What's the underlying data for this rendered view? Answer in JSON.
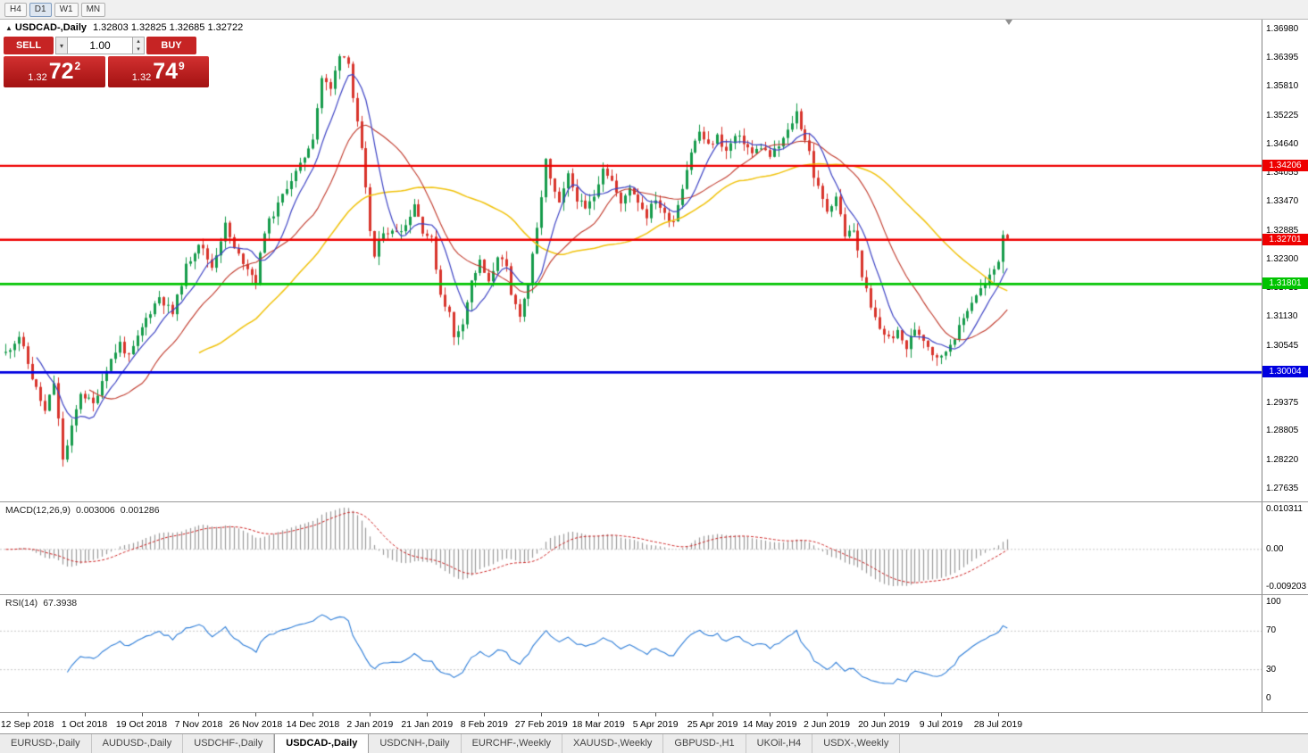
{
  "toolbar": {
    "timeframes": [
      {
        "label": "H4",
        "active": false
      },
      {
        "label": "D1",
        "active": true
      },
      {
        "label": "W1",
        "active": false
      },
      {
        "label": "MN",
        "active": false
      }
    ]
  },
  "chart_header": {
    "collapse_icon": "▲",
    "symbol": "USDCAD-,Daily",
    "ohlc": "1.32803 1.32825 1.32685 1.32722"
  },
  "trade_panel": {
    "sell_label": "SELL",
    "buy_label": "BUY",
    "volume": "1.00",
    "sell_price": {
      "prefix": "1.32",
      "big": "72",
      "sup": "2"
    },
    "buy_price": {
      "prefix": "1.32",
      "big": "74",
      "sup": "9"
    }
  },
  "price_axis": {
    "labels": [
      "1.36980",
      "1.36395",
      "1.35810",
      "1.35225",
      "1.34640",
      "1.34055",
      "1.33470",
      "1.32885",
      "1.32300",
      "1.31715",
      "1.31130",
      "1.30545",
      "1.29960",
      "1.29375",
      "1.28805",
      "1.28220",
      "1.27635"
    ]
  },
  "hlines": [
    {
      "label": "1.34206",
      "value": 1.34206,
      "color": "#ee0000",
      "width": 2.4
    },
    {
      "label": "1.32701",
      "value": 1.32701,
      "color": "#ee0000",
      "width": 2.4
    },
    {
      "label": "1.31801",
      "value": 1.31801,
      "color": "#00c400",
      "width": 2.6
    },
    {
      "label": "1.30004",
      "value": 1.30004,
      "color": "#0000e0",
      "width": 2.6
    }
  ],
  "macd_panel": {
    "name": "MACD(12,26,9)",
    "value_main": "0.003006",
    "value_signal": "0.001286",
    "axis_labels": [
      "0.010311",
      "0.00",
      "-0.009203"
    ]
  },
  "rsi_panel": {
    "name": "RSI(14)",
    "value": "67.3938",
    "axis_labels": [
      "100",
      "70",
      "30",
      "0"
    ],
    "levels": [
      70,
      30
    ]
  },
  "date_axis": {
    "labels": [
      "12 Sep 2018",
      "1 Oct 2018",
      "19 Oct 2018",
      "7 Nov 2018",
      "26 Nov 2018",
      "14 Dec 2018",
      "2 Jan 2019",
      "21 Jan 2019",
      "8 Feb 2019",
      "27 Feb 2019",
      "18 Mar 2019",
      "5 Apr 2019",
      "25 Apr 2019",
      "14 May 2019",
      "2 Jun 2019",
      "20 Jun 2019",
      "9 Jul 2019",
      "28 Jul 2019"
    ]
  },
  "tabs": [
    {
      "label": "EURUSD-,Daily",
      "active": false
    },
    {
      "label": "AUDUSD-,Daily",
      "active": false
    },
    {
      "label": "USDCHF-,Daily",
      "active": false
    },
    {
      "label": "USDCAD-,Daily",
      "active": true
    },
    {
      "label": "USDCNH-,Daily",
      "active": false
    },
    {
      "label": "EURCHF-,Weekly",
      "active": false
    },
    {
      "label": "XAUUSD-,Weekly",
      "active": false
    },
    {
      "label": "GBPUSD-,H1",
      "active": false
    },
    {
      "label": "UKOil-,H4",
      "active": false
    },
    {
      "label": "USDX-,Weekly",
      "active": false
    }
  ],
  "chart_data": {
    "type": "candlestick",
    "symbol": "USDCAD",
    "timeframe": "Daily",
    "x_range": [
      "12 Sep 2018",
      "28 Jul 2019"
    ],
    "y_axis_ticks": [
      1.3698,
      1.36395,
      1.3581,
      1.35225,
      1.3464,
      1.34055,
      1.3347,
      1.32885,
      1.323,
      1.31715,
      1.3113,
      1.30545,
      1.2996,
      1.29375,
      1.28805,
      1.2822,
      1.27635
    ],
    "horizontal_lines": [
      1.34206,
      1.32701,
      1.31801,
      1.30004
    ],
    "last_bar": {
      "open": 1.32803,
      "high": 1.32825,
      "low": 1.32685,
      "close": 1.32722
    },
    "bid": 1.32722,
    "ask": 1.32749,
    "indicators": [
      {
        "name": "MACD",
        "params": [
          12,
          26,
          9
        ],
        "current": [
          0.003006,
          0.001286
        ],
        "scale": [
          0.010311,
          -0.009203
        ]
      },
      {
        "name": "RSI",
        "params": [
          14
        ],
        "current": 67.3938,
        "scale": [
          0,
          100
        ],
        "levels": [
          30,
          70
        ]
      }
    ],
    "style": {
      "up_color": "#169b4b",
      "down_color": "#d8342c",
      "ma_colors": [
        "#3d43c4",
        "#c0392b",
        "#f0c20c"
      ],
      "ma_periods": [
        8,
        20,
        45
      ],
      "macd_hist_color": "#9a9a9a",
      "macd_signal_color": "#cc2020",
      "rsi_color": "#2f7ed8"
    },
    "bar_count": 229,
    "close_anchors": [
      [
        0,
        1.304
      ],
      [
        3,
        1.3075
      ],
      [
        6,
        1.299
      ],
      [
        9,
        1.292
      ],
      [
        11,
        1.298
      ],
      [
        13,
        1.2825
      ],
      [
        14,
        1.285
      ],
      [
        17,
        1.296
      ],
      [
        20,
        1.2935
      ],
      [
        23,
        1.301
      ],
      [
        26,
        1.306
      ],
      [
        28,
        1.303
      ],
      [
        32,
        1.311
      ],
      [
        35,
        1.3155
      ],
      [
        38,
        1.312
      ],
      [
        41,
        1.3215
      ],
      [
        44,
        1.3265
      ],
      [
        47,
        1.3215
      ],
      [
        50,
        1.33
      ],
      [
        52,
        1.325
      ],
      [
        55,
        1.3215
      ],
      [
        57,
        1.3185
      ],
      [
        59,
        1.329
      ],
      [
        62,
        1.334
      ],
      [
        64,
        1.338
      ],
      [
        67,
        1.342
      ],
      [
        70,
        1.348
      ],
      [
        72,
        1.36
      ],
      [
        74,
        1.3575
      ],
      [
        76,
        1.365
      ],
      [
        78,
        1.3635
      ],
      [
        79,
        1.356
      ],
      [
        81,
        1.345
      ],
      [
        83,
        1.329
      ],
      [
        84,
        1.3235
      ],
      [
        86,
        1.329
      ],
      [
        88,
        1.3285
      ],
      [
        91,
        1.33
      ],
      [
        93,
        1.3345
      ],
      [
        95,
        1.329
      ],
      [
        97,
        1.327
      ],
      [
        99,
        1.316
      ],
      [
        101,
        1.312
      ],
      [
        102,
        1.307
      ],
      [
        104,
        1.3105
      ],
      [
        106,
        1.3185
      ],
      [
        108,
        1.3225
      ],
      [
        110,
        1.318
      ],
      [
        112,
        1.324
      ],
      [
        114,
        1.321
      ],
      [
        115,
        1.3155
      ],
      [
        117,
        1.312
      ],
      [
        119,
        1.318
      ],
      [
        121,
        1.329
      ],
      [
        123,
        1.343
      ],
      [
        124,
        1.339
      ],
      [
        126,
        1.334
      ],
      [
        128,
        1.34
      ],
      [
        130,
        1.3355
      ],
      [
        132,
        1.333
      ],
      [
        134,
        1.336
      ],
      [
        136,
        1.342
      ],
      [
        138,
        1.339
      ],
      [
        140,
        1.334
      ],
      [
        142,
        1.338
      ],
      [
        144,
        1.335
      ],
      [
        146,
        1.332
      ],
      [
        148,
        1.3355
      ],
      [
        150,
        1.332
      ],
      [
        152,
        1.331
      ],
      [
        154,
        1.338
      ],
      [
        156,
        1.345
      ],
      [
        158,
        1.349
      ],
      [
        160,
        1.346
      ],
      [
        162,
        1.348
      ],
      [
        164,
        1.345
      ],
      [
        166,
        1.348
      ],
      [
        168,
        1.347
      ],
      [
        170,
        1.3445
      ],
      [
        172,
        1.346
      ],
      [
        174,
        1.344
      ],
      [
        176,
        1.346
      ],
      [
        178,
        1.349
      ],
      [
        180,
        1.353
      ],
      [
        181,
        1.35
      ],
      [
        183,
        1.345
      ],
      [
        184,
        1.34
      ],
      [
        186,
        1.335
      ],
      [
        187,
        1.333
      ],
      [
        189,
        1.336
      ],
      [
        191,
        1.328
      ],
      [
        193,
        1.329
      ],
      [
        195,
        1.32
      ],
      [
        197,
        1.313
      ],
      [
        199,
        1.309
      ],
      [
        201,
        1.307
      ],
      [
        203,
        1.308
      ],
      [
        205,
        1.305
      ],
      [
        207,
        1.309
      ],
      [
        209,
        1.307
      ],
      [
        211,
        1.304
      ],
      [
        213,
        1.303
      ],
      [
        215,
        1.306
      ],
      [
        217,
        1.309
      ],
      [
        219,
        1.313
      ],
      [
        221,
        1.316
      ],
      [
        223,
        1.318
      ],
      [
        225,
        1.321
      ],
      [
        227,
        1.325
      ],
      [
        228,
        1.3272
      ]
    ]
  }
}
